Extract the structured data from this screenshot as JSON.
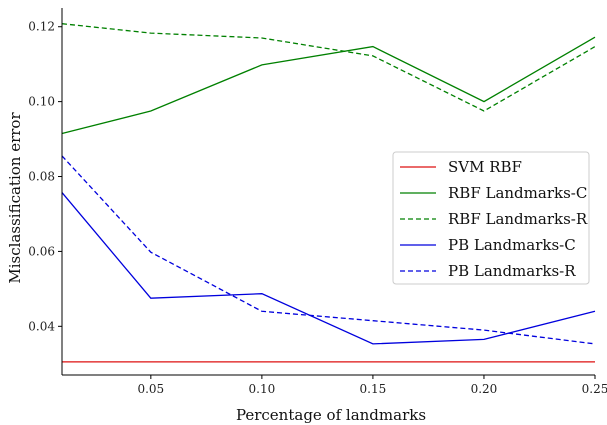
{
  "chart_data": {
    "type": "line",
    "xlabel": "Percentage of landmarks",
    "ylabel": "Misclassification error",
    "xlim": [
      0.01,
      0.25
    ],
    "ylim": [
      0.027,
      0.125
    ],
    "xticks": [
      0.05,
      0.1,
      0.15,
      0.2,
      0.25
    ],
    "xtick_labels": [
      "0.05",
      "0.10",
      "0.15",
      "0.20",
      "0.25"
    ],
    "yticks": [
      0.04,
      0.06,
      0.08,
      0.1,
      0.12
    ],
    "ytick_labels": [
      "0.04",
      "0.06",
      "0.08",
      "0.10",
      "0.12"
    ],
    "legend_position": "right",
    "grid": false,
    "series": [
      {
        "name": "SVM RBF",
        "color": "#dd1111",
        "dash": "solid",
        "x": [
          0.01,
          0.25
        ],
        "y": [
          0.0305,
          0.0305
        ]
      },
      {
        "name": "RBF Landmarks-C",
        "color": "#008000",
        "dash": "solid",
        "x": [
          0.01,
          0.05,
          0.1,
          0.15,
          0.2,
          0.25
        ],
        "y": [
          0.0915,
          0.0975,
          0.1098,
          0.1147,
          0.1,
          0.1172
        ]
      },
      {
        "name": "RBF Landmarks-R",
        "color": "#008000",
        "dash": "dashed",
        "x": [
          0.01,
          0.05,
          0.1,
          0.15,
          0.2,
          0.25
        ],
        "y": [
          0.1208,
          0.1183,
          0.117,
          0.1122,
          0.0975,
          0.1147
        ]
      },
      {
        "name": "PB Landmarks-C",
        "color": "#0000dd",
        "dash": "solid",
        "x": [
          0.01,
          0.05,
          0.1,
          0.15,
          0.2,
          0.25
        ],
        "y": [
          0.0757,
          0.0475,
          0.0487,
          0.0353,
          0.0365,
          0.044
        ]
      },
      {
        "name": "PB Landmarks-R",
        "color": "#0000dd",
        "dash": "dashed",
        "x": [
          0.01,
          0.05,
          0.1,
          0.15,
          0.2,
          0.25
        ],
        "y": [
          0.0855,
          0.0598,
          0.044,
          0.0415,
          0.039,
          0.0353
        ]
      }
    ]
  }
}
